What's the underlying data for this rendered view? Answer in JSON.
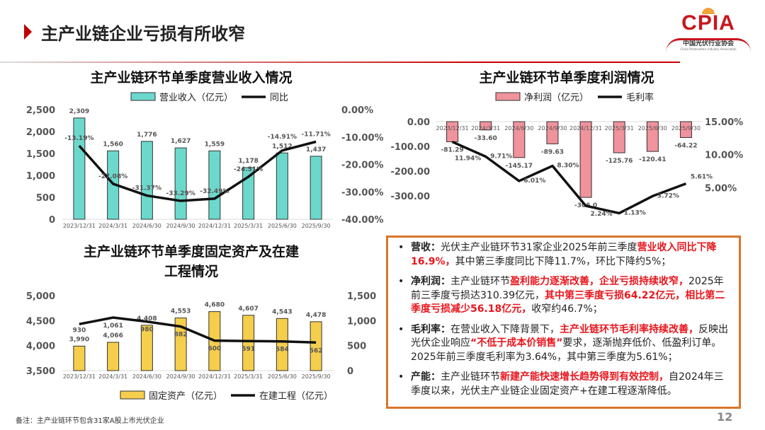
{
  "header": {
    "title": "主产业链企业亏损有所收窄"
  },
  "logo": {
    "text": "CPIA",
    "cn": "中国光伏行业协会",
    "en": "China Photovoltaic Industry Association"
  },
  "colors": {
    "accent": "#C00000",
    "revenue_bar": "#6CD8CC",
    "profit_bar": "#F0939C",
    "asset_bar": "#F5CE4C",
    "line": "#111111",
    "box_border": "#D9762B",
    "highlight": "#E8161D"
  },
  "chart_data": [
    {
      "type": "bar+line",
      "title": "主产业链环节单季度营业收入情况",
      "categories": [
        "2023/12/31",
        "2024/3/31",
        "2024/6/30",
        "2024/9/30",
        "2024/12/31",
        "2025/3/31",
        "2025/6/30",
        "2025/9/30"
      ],
      "series": [
        {
          "name": "营业收入（亿元）",
          "type": "bar",
          "axis": "left",
          "values": [
            2309,
            1560,
            1776,
            1627,
            1559,
            1178,
            1512,
            1437
          ],
          "labels": [
            "2,309",
            "1,560",
            "1,776",
            "1,627",
            "1,559",
            "1,178",
            "1,512",
            "1,437"
          ]
        },
        {
          "name": "同比",
          "type": "line",
          "axis": "right",
          "values": [
            -13.19,
            -27.08,
            -31.37,
            -33.29,
            -32.49,
            -24.51,
            -14.91,
            -11.71
          ],
          "labels": [
            "-13.19%",
            "-27.08%",
            "-31.37%",
            "-33.29%",
            "-32.49%",
            "-24.51%",
            "-14.91%",
            "-11.71%"
          ]
        }
      ],
      "ylim": [
        0,
        2500
      ],
      "yticks": [
        "0",
        "500",
        "1,000",
        "1,500",
        "2,000",
        "2,500"
      ],
      "y2lim": [
        -40,
        0
      ],
      "y2ticks": [
        "-40.00%",
        "-30.00%",
        "-20.00%",
        "-10.00%",
        "0.00%"
      ],
      "legend": "top"
    },
    {
      "type": "bar+line",
      "title": "主产业链环节单季度利润情况",
      "categories": [
        "2023/12/31",
        "2024/3/31",
        "2024/6/30",
        "2024/9/30",
        "2024/12/31",
        "2025/3/31",
        "2025/6/30",
        "2025/9/30"
      ],
      "series": [
        {
          "name": "净利润（亿元）",
          "type": "bar",
          "axis": "left",
          "values": [
            -81.29,
            -33.6,
            -145.17,
            -89.63,
            -306.0,
            -125.76,
            -120.41,
            -64.22
          ],
          "labels": [
            "-81.29",
            "-33.60",
            "-145.17",
            "-89.63",
            "-306.0",
            "-125.76",
            "-120.41",
            "-64.22"
          ]
        },
        {
          "name": "毛利率",
          "type": "line",
          "axis": "right",
          "values": [
            11.94,
            9.71,
            6.01,
            8.3,
            2.24,
            1.13,
            3.72,
            5.61
          ],
          "labels": [
            "11.94%",
            "9.71%",
            "6.01%",
            "8.30%",
            "2.24%",
            "1.13%",
            "3.72%",
            "5.61%"
          ]
        }
      ],
      "ylim": [
        -400,
        0
      ],
      "yticks": [
        "-300.00",
        "-200.00",
        "-100.00",
        "0.00"
      ],
      "y2lim": [
        0,
        15
      ],
      "y2ticks": [
        "5.00%",
        "10.00%",
        "15.00%"
      ],
      "legend": "top"
    },
    {
      "type": "bar+line",
      "title": "主产业链环节单季度固定资产及在建工程情况",
      "categories": [
        "2023/12/31",
        "2024/3/31",
        "2024/6/30",
        "2024/9/30",
        "2024/12/31",
        "2025/3/31",
        "2025/6/30",
        "2025/9/30"
      ],
      "series": [
        {
          "name": "固定资产（亿元）",
          "type": "bar",
          "axis": "left",
          "values": [
            3990,
            4066,
            4408,
            4553,
            4680,
            4607,
            4543,
            4478
          ],
          "labels": [
            "3,990",
            "4,066",
            "4,408",
            "4,553",
            "4,680",
            "4,607",
            "4,543",
            "4,478"
          ]
        },
        {
          "name": "在建工程（亿元）",
          "type": "line",
          "axis": "right",
          "values": [
            930,
            1061,
            980,
            882,
            600,
            591,
            584,
            562
          ],
          "labels": [
            "930",
            "1,061",
            "980",
            "882",
            "600",
            "591",
            "584",
            "562"
          ]
        }
      ],
      "ylim": [
        3500,
        5000
      ],
      "yticks": [
        "3,500",
        "4,000",
        "4,500",
        "5,000"
      ],
      "y2lim": [
        0,
        1500
      ],
      "y2ticks": [
        "0",
        "500",
        "1,000",
        "1,500"
      ],
      "legend": "bottom"
    }
  ],
  "chart3_title_lines": [
    "主产业链环节单季度固定资产及在建",
    "工程情况"
  ],
  "summary": {
    "revenue": {
      "head": "营收：",
      "t1": "光伏主产业链环节31家企业2025年前三季度",
      "r1": "营业收入同比下降16.9%，",
      "t2": "其中第三季度同比下降11.7%，环比下降约5%；"
    },
    "profit": {
      "head": "净利润：",
      "t1": "主产业链环节",
      "r1": "盈利能力逐渐改善，企业亏损持续收窄，",
      "t2": "2025年前三季度亏损达310.39亿元，",
      "r2": "其中第三季度亏损64.22亿元，相比第二季度亏损减少56.18亿元，",
      "t3": "收窄约46.7%；"
    },
    "margin": {
      "head": "毛利率：",
      "t1": "在营业收入下降背景下，",
      "r1": "主产业链环节毛利率持续改善，",
      "t2": "反映出光伏企业响应",
      "r2": "“不低于成本价销售”",
      "t3": "要求，逐渐抛弃低价、低盈利订单。2025年前三季度毛利率为3.64%，其中第三季度为5.61%；"
    },
    "capacity": {
      "head": "产能：",
      "t1": "主产业链环节",
      "r1": "新建产能快速增长趋势得到有效控制，",
      "t2": "自2024年三季度以来，光伏主产业链企业固定资产+在建工程逐渐降低。"
    }
  },
  "footnote": "备注：主产业链环节包含31家A股上市光伏企业",
  "page_number": "12"
}
